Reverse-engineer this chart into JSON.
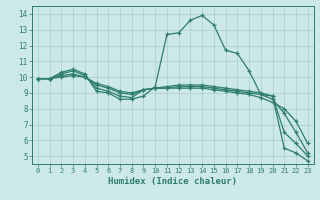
{
  "xlabel": "Humidex (Indice chaleur)",
  "xlim": [
    -0.5,
    23.5
  ],
  "ylim": [
    4.5,
    14.5
  ],
  "yticks": [
    5,
    6,
    7,
    8,
    9,
    10,
    11,
    12,
    13,
    14
  ],
  "xticks": [
    0,
    1,
    2,
    3,
    4,
    5,
    6,
    7,
    8,
    9,
    10,
    11,
    12,
    13,
    14,
    15,
    16,
    17,
    18,
    19,
    20,
    21,
    22,
    23
  ],
  "bg_color": "#cce8e8",
  "line_color": "#2e7d6e",
  "grid_color": "#aacece",
  "lines": [
    [
      9.9,
      9.9,
      10.3,
      10.5,
      10.2,
      9.1,
      9.0,
      8.6,
      8.6,
      8.8,
      9.4,
      12.7,
      12.8,
      13.6,
      13.9,
      13.3,
      11.7,
      11.5,
      10.4,
      8.9,
      8.8,
      5.5,
      5.2,
      4.7
    ],
    [
      9.9,
      9.9,
      10.2,
      10.4,
      10.1,
      9.3,
      9.1,
      8.8,
      8.7,
      9.2,
      9.3,
      9.4,
      9.5,
      9.5,
      9.5,
      9.4,
      9.3,
      9.2,
      9.1,
      9.0,
      8.8,
      6.5,
      5.8,
      5.0
    ],
    [
      9.9,
      9.9,
      10.1,
      10.2,
      10.0,
      9.5,
      9.3,
      9.0,
      8.9,
      9.2,
      9.3,
      9.3,
      9.4,
      9.4,
      9.4,
      9.3,
      9.2,
      9.1,
      9.0,
      8.9,
      8.6,
      7.7,
      6.5,
      5.2
    ],
    [
      9.9,
      9.9,
      10.0,
      10.1,
      10.0,
      9.6,
      9.4,
      9.1,
      9.0,
      9.2,
      9.3,
      9.3,
      9.3,
      9.3,
      9.3,
      9.2,
      9.1,
      9.0,
      8.9,
      8.7,
      8.4,
      8.0,
      7.2,
      5.8
    ]
  ]
}
